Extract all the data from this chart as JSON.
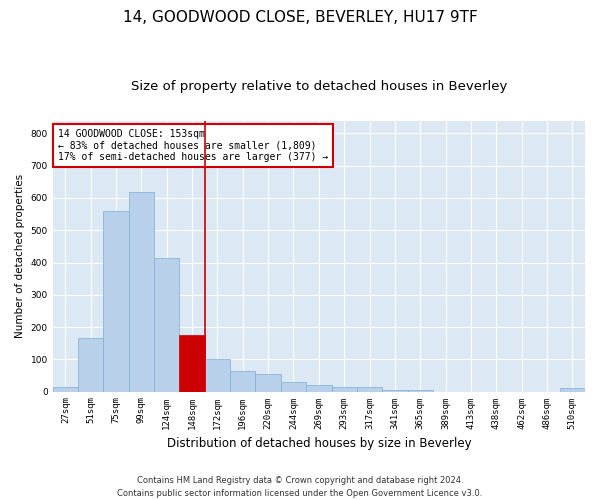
{
  "title1": "14, GOODWOOD CLOSE, BEVERLEY, HU17 9TF",
  "title2": "Size of property relative to detached houses in Beverley",
  "xlabel": "Distribution of detached houses by size in Beverley",
  "ylabel": "Number of detached properties",
  "footnote": "Contains HM Land Registry data © Crown copyright and database right 2024.\nContains public sector information licensed under the Open Government Licence v3.0.",
  "bin_labels": [
    "27sqm",
    "51sqm",
    "75sqm",
    "99sqm",
    "124sqm",
    "148sqm",
    "172sqm",
    "196sqm",
    "220sqm",
    "244sqm",
    "269sqm",
    "293sqm",
    "317sqm",
    "341sqm",
    "365sqm",
    "389sqm",
    "413sqm",
    "438sqm",
    "462sqm",
    "486sqm",
    "510sqm"
  ],
  "bar_heights": [
    15,
    165,
    560,
    620,
    415,
    175,
    100,
    65,
    55,
    30,
    20,
    15,
    15,
    5,
    5,
    0,
    0,
    0,
    0,
    0,
    10
  ],
  "bar_color": "#b8d0ea",
  "bar_edge_color": "#7aafd4",
  "highlight_bin": 5,
  "highlight_color": "#cc0000",
  "annotation_line1": "14 GOODWOOD CLOSE: 153sqm",
  "annotation_line2": "← 83% of detached houses are smaller (1,809)",
  "annotation_line3": "17% of semi-detached houses are larger (377) →",
  "annotation_box_color": "#ffffff",
  "annotation_box_edge": "#cc0000",
  "ylim": [
    0,
    840
  ],
  "yticks": [
    0,
    100,
    200,
    300,
    400,
    500,
    600,
    700,
    800
  ],
  "background_color": "#dce9f5",
  "fig_background": "#ffffff",
  "grid_color": "#ffffff",
  "title1_fontsize": 11,
  "title2_fontsize": 9.5,
  "xlabel_fontsize": 8.5,
  "ylabel_fontsize": 7.5,
  "tick_fontsize": 6.5,
  "footnote_fontsize": 6
}
